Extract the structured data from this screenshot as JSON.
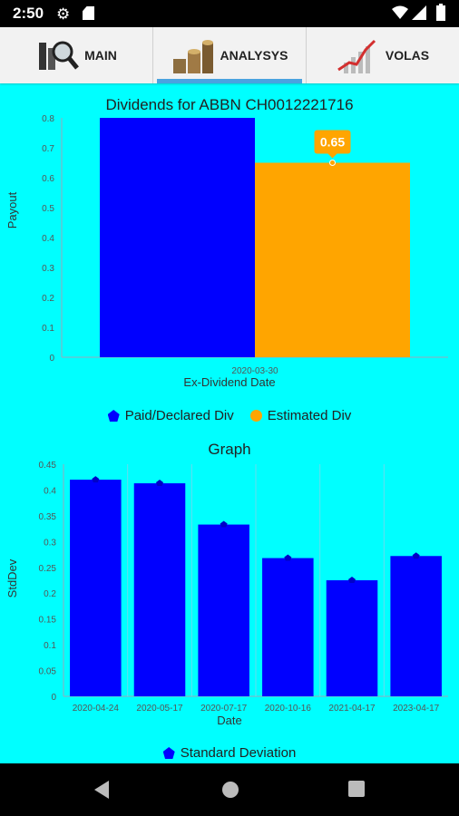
{
  "status_bar": {
    "time": "2:50"
  },
  "tabs": [
    {
      "label": "MAIN",
      "icon": "magnifier-chart-icon",
      "active": false
    },
    {
      "label": "ANALYSYS",
      "icon": "coins-stack-icon",
      "active": true
    },
    {
      "label": "VOLAS",
      "icon": "trend-chart-icon",
      "active": false
    }
  ],
  "chart_data": [
    {
      "type": "bar",
      "title": "Dividends for ABBN  CH0012221716",
      "xlabel": "Ex-Dividend Date",
      "ylabel": "Payout",
      "ylim": [
        0,
        0.8
      ],
      "yticks": [
        "0",
        "0.1",
        "0.2",
        "0.3",
        "0.4",
        "0.5",
        "0.6",
        "0.7",
        "0.8"
      ],
      "categories": [
        "2020-03-30"
      ],
      "series": [
        {
          "name": "Paid/Declared Div",
          "values": [
            0.8
          ],
          "color": "#0000ff"
        },
        {
          "name": "Estimated Div",
          "values": [
            0.65
          ],
          "color": "#ffa500"
        }
      ],
      "highlight_label": "0.65",
      "legend": "bottom"
    },
    {
      "type": "bar",
      "title": "Graph",
      "xlabel": "Date",
      "ylabel": "StdDev",
      "ylim": [
        0,
        0.45
      ],
      "yticks": [
        "0",
        "0.05",
        "0.1",
        "0.15",
        "0.2",
        "0.25",
        "0.3",
        "0.35",
        "0.4",
        "0.45"
      ],
      "categories": [
        "2020-04-24",
        "2020-05-17",
        "2020-07-17",
        "2020-10-16",
        "2021-04-17",
        "2023-04-17"
      ],
      "series": [
        {
          "name": "Standard Deviation",
          "values": [
            0.42,
            0.413,
            0.333,
            0.268,
            0.225,
            0.272
          ],
          "color": "#0000ff"
        }
      ],
      "legend": "bottom"
    }
  ]
}
